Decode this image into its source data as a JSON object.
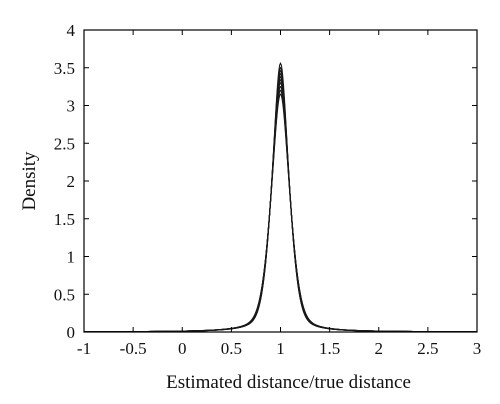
{
  "chart_data": {
    "type": "line",
    "title": "",
    "xlabel": "Estimated distance/true distance",
    "ylabel": "Density",
    "xlim": [
      -1,
      3
    ],
    "ylim": [
      0,
      4
    ],
    "xticks": [
      "-1",
      "-0.5",
      "0",
      "0.5",
      "1",
      "1.5",
      "2",
      "2.5",
      "3"
    ],
    "yticks": [
      "0",
      "0.5",
      "1",
      "1.5",
      "2",
      "2.5",
      "3",
      "3.5",
      "4"
    ],
    "grid": false,
    "legend": "none",
    "line_color": "#1a1a1a",
    "series": [
      {
        "peak_x": 1.0,
        "peak_y": 3.56
      },
      {
        "peak_x": 1.0,
        "peak_y": 3.5
      },
      {
        "peak_x": 1.0,
        "peak_y": 3.46
      },
      {
        "peak_x": 1.0,
        "peak_y": 3.42
      },
      {
        "peak_x": 1.0,
        "peak_y": 3.38
      },
      {
        "peak_x": 1.0,
        "peak_y": 3.34
      },
      {
        "peak_x": 1.0,
        "peak_y": 3.3
      },
      {
        "peak_x": 1.0,
        "peak_y": 3.25
      },
      {
        "peak_x": 1.0,
        "peak_y": 3.2
      },
      {
        "peak_x": 1.0,
        "peak_y": 3.15
      }
    ]
  }
}
